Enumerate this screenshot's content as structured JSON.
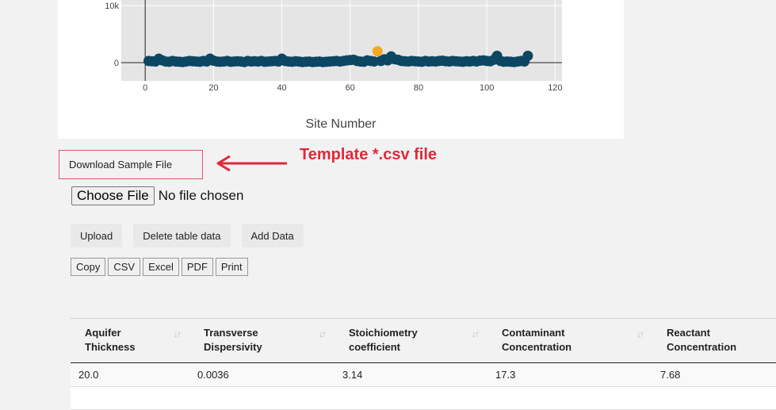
{
  "chart_data": {
    "type": "scatter",
    "xlabel": "Site Number",
    "x_ticks": [
      "0",
      "20",
      "40",
      "60",
      "80",
      "100",
      "120"
    ],
    "y_ticks": [
      "0",
      "10k"
    ],
    "xlim": [
      -7,
      122
    ],
    "ylim": [
      -3200,
      11000
    ],
    "series": [
      {
        "color": "#0d4663",
        "x": [
          1,
          2,
          3,
          4,
          5,
          6,
          7,
          8,
          9,
          10,
          11,
          12,
          13,
          14,
          15,
          16,
          17,
          18,
          19,
          20,
          21,
          22,
          23,
          24,
          25,
          26,
          27,
          28,
          29,
          30,
          31,
          32,
          33,
          34,
          35,
          36,
          37,
          38,
          39,
          40,
          41,
          42,
          43,
          44,
          45,
          46,
          47,
          48,
          49,
          50,
          51,
          52,
          53,
          54,
          55,
          56,
          57,
          58,
          59,
          60,
          61,
          62,
          63,
          64,
          65,
          66,
          67,
          69,
          70,
          71,
          72,
          73,
          74,
          75,
          76,
          77,
          78,
          79,
          80,
          81,
          82,
          83,
          84,
          85,
          86,
          87,
          88,
          89,
          90,
          91,
          92,
          93,
          94,
          95,
          96,
          97,
          98,
          99,
          100,
          101,
          102,
          103,
          104,
          105,
          106,
          107,
          108,
          109,
          110,
          111,
          112
        ],
        "y": [
          300,
          250,
          200,
          700,
          400,
          200,
          150,
          300,
          200,
          150,
          100,
          200,
          300,
          250,
          200,
          150,
          300,
          200,
          700,
          350,
          200,
          150,
          200,
          300,
          150,
          200,
          250,
          200,
          100,
          300,
          200,
          250,
          200,
          300,
          150,
          200,
          250,
          300,
          200,
          700,
          300,
          200,
          150,
          250,
          200,
          100,
          150,
          200,
          100,
          150,
          200,
          100,
          150,
          200,
          250,
          300,
          200,
          300,
          400,
          450,
          500,
          300,
          200,
          150,
          400,
          300,
          200,
          300,
          600,
          400,
          1100,
          600,
          500,
          300,
          250,
          200,
          300,
          250,
          200,
          150,
          300,
          200,
          250,
          200,
          300,
          350,
          250,
          200,
          300,
          250,
          200,
          150,
          250,
          200,
          300,
          200,
          350,
          400,
          300,
          250,
          500,
          1200,
          300,
          150,
          200,
          150,
          100,
          200,
          300,
          200,
          1200
        ]
      },
      {
        "color": "#f5a623",
        "x": [
          68
        ],
        "y": [
          2000
        ]
      }
    ]
  },
  "download_label": "Download Sample File",
  "annotation": "Template *.csv file",
  "file_input": {
    "button": "Choose File",
    "status": "No file chosen"
  },
  "actions": [
    "Upload",
    "Delete table data",
    "Add Data"
  ],
  "exports": [
    "Copy",
    "CSV",
    "Excel",
    "PDF",
    "Print"
  ],
  "table": {
    "headers": [
      [
        "Aquifer",
        "Thickness"
      ],
      [
        "Transverse",
        "Dispersivity"
      ],
      [
        "Stoichiometry",
        "coefficient"
      ],
      [
        "Contaminant",
        "Concentration"
      ],
      [
        "Reactant",
        "Concentration"
      ]
    ],
    "rows": [
      [
        "20.0",
        "0.0036",
        "3.14",
        "17.3",
        "7.68"
      ]
    ]
  }
}
